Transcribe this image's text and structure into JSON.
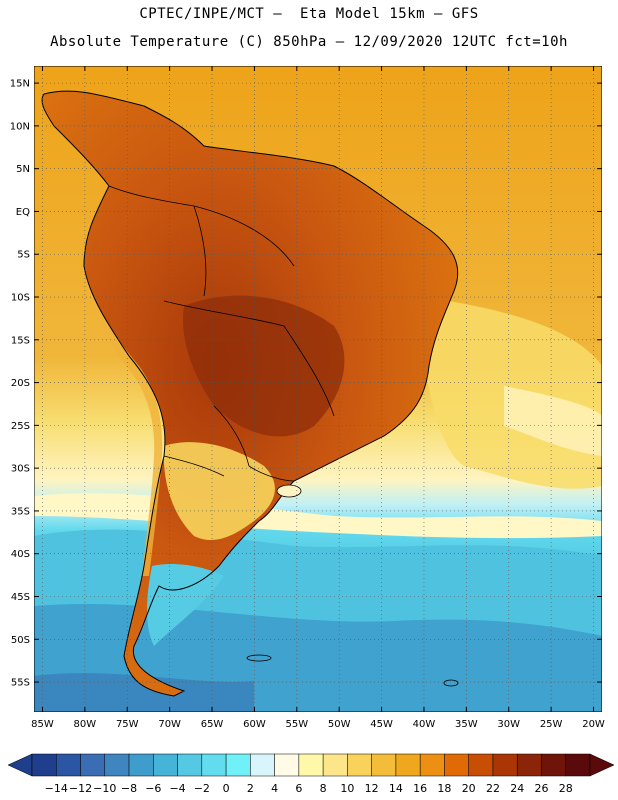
{
  "title_line1": "CPTEC/INPE/MCT –  Eta Model 15km – GFS",
  "title_line2": "Absolute Temperature (C) 850hPa – 12/09/2020 12UTC fct=10h",
  "lat_labels": [
    "15N",
    "10N",
    "5N",
    "EQ",
    "5S",
    "10S",
    "15S",
    "20S",
    "25S",
    "30S",
    "35S",
    "40S",
    "45S",
    "50S",
    "55S"
  ],
  "lon_labels": [
    "85W",
    "80W",
    "75W",
    "70W",
    "65W",
    "60W",
    "55W",
    "50W",
    "45W",
    "40W",
    "35W",
    "30W",
    "25W",
    "20W"
  ],
  "colorbar": {
    "labels": [
      "-14",
      "-12",
      "-10",
      "-8",
      "-6",
      "-4",
      "-2",
      "0",
      "2",
      "4",
      "6",
      "8",
      "10",
      "12",
      "14",
      "16",
      "18",
      "20",
      "22",
      "24",
      "26",
      "28"
    ],
    "colors": [
      "#1f3e8c",
      "#2b56a3",
      "#3a6db4",
      "#3f85c0",
      "#3f9dcb",
      "#46b3d8",
      "#55c9e4",
      "#63dcef",
      "#70f0f7",
      "#d7f5fb",
      "#fffbe6",
      "#fff8a8",
      "#fde68a",
      "#f9d25c",
      "#f3bd3a",
      "#efa81e",
      "#ec8f12",
      "#e06a06",
      "#c94e05",
      "#aa3606",
      "#8b2408",
      "#6e1408",
      "#5a0a0a"
    ]
  },
  "map": {
    "lon_range": [
      -86,
      -19
    ],
    "lat_range": [
      -58.5,
      17
    ],
    "contour_interval_c": 2
  }
}
